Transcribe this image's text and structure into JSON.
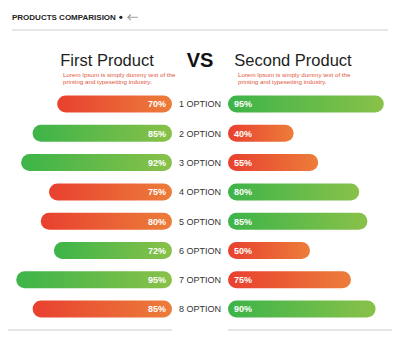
{
  "chart_data": {
    "type": "bar",
    "title": "PRODUCTS COMPARISION",
    "annotations": [
      "VS"
    ],
    "orientation": "horizontal",
    "data_labels": true,
    "tick_labels": "y",
    "grid": false,
    "xlim": [
      0,
      100
    ],
    "categories": [
      "1 OPTION",
      "2 OPTION",
      "3 OPTION",
      "4 OPTION",
      "5 OPTION",
      "6 OPTION",
      "7 OPTION",
      "8 OPTION"
    ],
    "series": [
      {
        "name": "First Product",
        "description": "Lorem Ipsum is simply dummy text of the printing and typesetting industry.",
        "values": [
          70,
          85,
          92,
          75,
          80,
          72,
          95,
          85
        ],
        "value_labels": [
          "70%",
          "85%",
          "92%",
          "75%",
          "80%",
          "72%",
          "95%",
          "85%"
        ],
        "colors": [
          "#e8402f",
          "#3db449",
          "#3db449",
          "#e8402f",
          "#e8402f",
          "#3db449",
          "#3db449",
          "#e8402f"
        ]
      },
      {
        "name": "Second Product",
        "description": "Lorem Ipsum is simply dummy text of the printing and typesetting industry.",
        "values": [
          95,
          40,
          55,
          80,
          85,
          50,
          75,
          90
        ],
        "value_labels": [
          "95%",
          "40%",
          "55%",
          "80%",
          "85%",
          "50%",
          "75%",
          "90%"
        ],
        "colors": [
          "#3db449",
          "#e8402f",
          "#e8402f",
          "#3db449",
          "#3db449",
          "#e8402f",
          "#e8402f",
          "#3db449"
        ]
      }
    ]
  }
}
